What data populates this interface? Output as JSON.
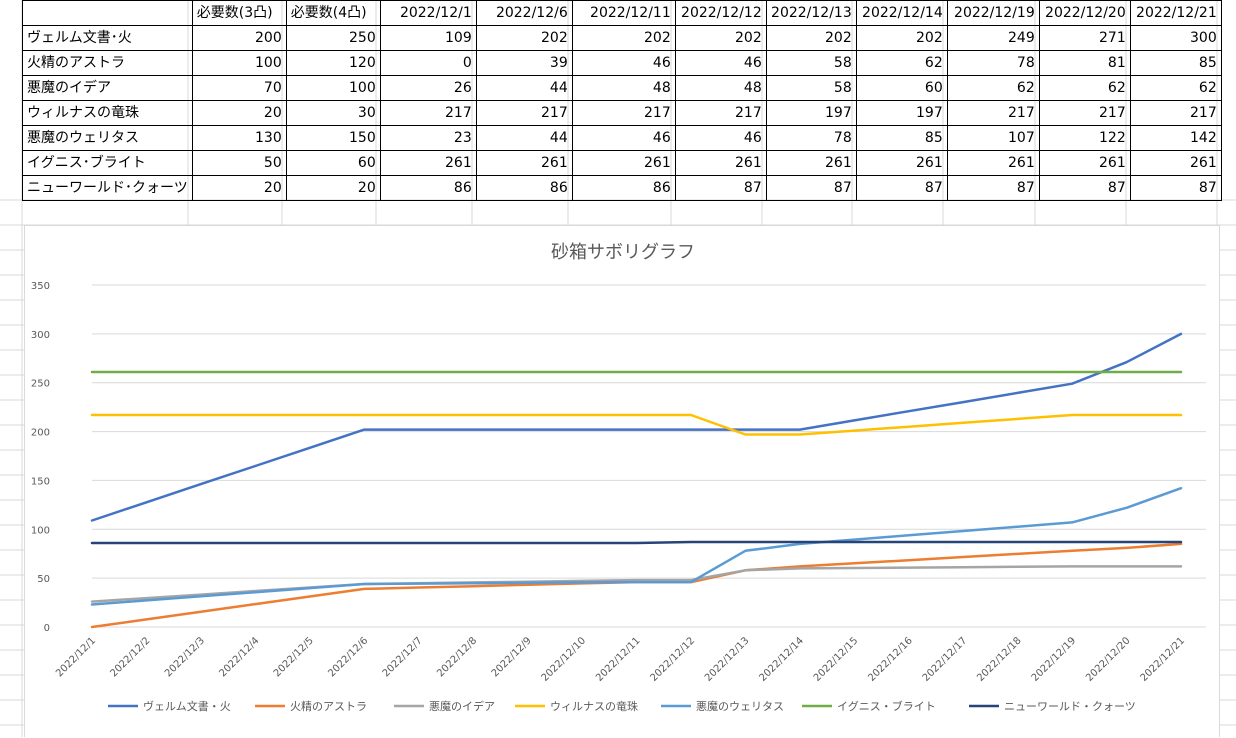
{
  "table": {
    "headers": [
      "",
      "必要数(3凸)",
      "必要数(4凸)",
      "2022/12/1",
      "2022/12/6",
      "2022/12/11",
      "2022/12/12",
      "2022/12/13",
      "2022/12/14",
      "2022/12/19",
      "2022/12/20",
      "2022/12/21"
    ],
    "rows": [
      {
        "name": "ヴェルム文書･火",
        "values": [
          "200",
          "250",
          "109",
          "202",
          "202",
          "202",
          "202",
          "202",
          "249",
          "271",
          "300"
        ]
      },
      {
        "name": "火精のアストラ",
        "values": [
          "100",
          "120",
          "0",
          "39",
          "46",
          "46",
          "58",
          "62",
          "78",
          "81",
          "85"
        ]
      },
      {
        "name": "悪魔のイデア",
        "values": [
          "70",
          "100",
          "26",
          "44",
          "48",
          "48",
          "58",
          "60",
          "62",
          "62",
          "62"
        ]
      },
      {
        "name": "ウィルナスの竜珠",
        "values": [
          "20",
          "30",
          "217",
          "217",
          "217",
          "217",
          "197",
          "197",
          "217",
          "217",
          "217"
        ]
      },
      {
        "name": "悪魔のウェリタス",
        "values": [
          "130",
          "150",
          "23",
          "44",
          "46",
          "46",
          "78",
          "85",
          "107",
          "122",
          "142"
        ]
      },
      {
        "name": "イグニス･ブライト",
        "values": [
          "50",
          "60",
          "261",
          "261",
          "261",
          "261",
          "261",
          "261",
          "261",
          "261",
          "261"
        ]
      },
      {
        "name": "ニューワールド･クォーツ",
        "values": [
          "20",
          "20",
          "86",
          "86",
          "86",
          "87",
          "87",
          "87",
          "87",
          "87",
          "87"
        ]
      }
    ]
  },
  "chart_data": {
    "type": "line",
    "title": "砂箱サボリグラフ",
    "xlabel": "",
    "ylabel": "",
    "ylim": [
      0,
      350
    ],
    "yticks": [
      "0",
      "50",
      "100",
      "150",
      "200",
      "250",
      "300",
      "350"
    ],
    "grid": true,
    "legend_position": "bottom",
    "categories": [
      "2022/12/1",
      "2022/12/2",
      "2022/12/3",
      "2022/12/4",
      "2022/12/5",
      "2022/12/6",
      "2022/12/7",
      "2022/12/8",
      "2022/12/9",
      "2022/12/10",
      "2022/12/11",
      "2022/12/12",
      "2022/12/13",
      "2022/12/14",
      "2022/12/15",
      "2022/12/16",
      "2022/12/17",
      "2022/12/18",
      "2022/12/19",
      "2022/12/20",
      "2022/12/21"
    ],
    "series": [
      {
        "name": "ヴェルム文書・火",
        "color": "#4472C4",
        "values": [
          109,
          127.6,
          146.2,
          164.8,
          183.4,
          202,
          202,
          202,
          202,
          202,
          202,
          202,
          202,
          202,
          211.4,
          220.8,
          230.2,
          239.6,
          249,
          271,
          300
        ]
      },
      {
        "name": "火精のアストラ",
        "color": "#ED7D31",
        "values": [
          0,
          7.8,
          15.6,
          23.4,
          31.2,
          39,
          40.4,
          41.8,
          43.2,
          44.6,
          46,
          46,
          58,
          62,
          65.2,
          68.4,
          71.6,
          74.8,
          78,
          81,
          85
        ]
      },
      {
        "name": "悪魔のイデア",
        "color": "#A5A5A5",
        "values": [
          26,
          29.6,
          33.2,
          36.8,
          40.4,
          44,
          44.8,
          45.6,
          46.4,
          47.2,
          48,
          48,
          58,
          60,
          60.4,
          60.8,
          61.2,
          61.6,
          62,
          62,
          62
        ]
      },
      {
        "name": "ウィルナスの竜珠",
        "color": "#FFC000",
        "values": [
          217,
          217,
          217,
          217,
          217,
          217,
          217,
          217,
          217,
          217,
          217,
          217,
          197,
          197,
          201,
          205,
          209,
          213,
          217,
          217,
          217
        ]
      },
      {
        "name": "悪魔のウェリタス",
        "color": "#5B9BD5",
        "values": [
          23,
          27.2,
          31.4,
          35.6,
          39.8,
          44,
          44.4,
          44.8,
          45.2,
          45.6,
          46,
          46,
          78,
          85,
          89.4,
          93.8,
          98.2,
          102.6,
          107,
          122,
          142
        ]
      },
      {
        "name": "イグニス・ブライト",
        "color": "#70AD47",
        "values": [
          261,
          261,
          261,
          261,
          261,
          261,
          261,
          261,
          261,
          261,
          261,
          261,
          261,
          261,
          261,
          261,
          261,
          261,
          261,
          261,
          261
        ]
      },
      {
        "name": "ニューワールド・クォーツ",
        "color": "#264478",
        "values": [
          86,
          86,
          86,
          86,
          86,
          86,
          86,
          86,
          86,
          86,
          86,
          87,
          87,
          87,
          87,
          87,
          87,
          87,
          87,
          87,
          87
        ]
      }
    ]
  }
}
